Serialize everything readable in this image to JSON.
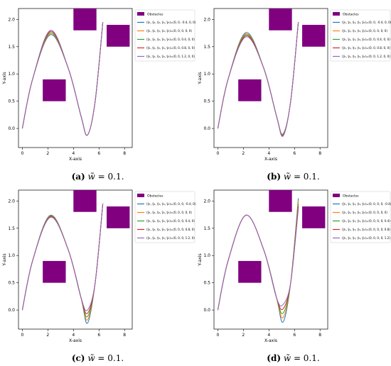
{
  "chart_data": [
    {
      "type": "line",
      "panel": "a",
      "xlabel": "X-axis",
      "ylabel": "Y-axis",
      "xlim": [
        -0.3,
        8.6
      ],
      "ylim": [
        -0.35,
        2.2
      ],
      "x_ticks": [
        0,
        2,
        4,
        6,
        8
      ],
      "y_ticks": [
        0.0,
        0.5,
        1.0,
        1.5,
        2.0
      ],
      "grid": false,
      "legend_position": "top-right",
      "legend_obstacles_label": "Obstacles",
      "obstacle_color": "#800080",
      "obstacles": [
        {
          "x0": 1.6,
          "x1": 3.4,
          "y0": 0.5,
          "y1": 0.9
        },
        {
          "x0": 4.0,
          "x1": 5.8,
          "y0": 1.8,
          "y1": 2.2
        },
        {
          "x0": 6.6,
          "x1": 8.4,
          "y0": 1.5,
          "y1": 1.9
        }
      ],
      "series": [
        {
          "name": "(γ̃₁, γ̃₂, γ̃₃, γ̃₄, γ̃₅)=(0, 0, -0.4, 0, 0)",
          "color": "#1f77b4",
          "peak_x": 2.2,
          "peak_y": 1.72,
          "valley_x": 5.1,
          "valley_y": -0.12,
          "end_x": 6.3,
          "end_y": 1.95
        },
        {
          "name": "(γ̃₁, γ̃₂, γ̃₃, γ̃₄, γ̃₅)=(0, 0, 0, 0, 0)",
          "color": "#ff7f0e",
          "peak_x": 2.2,
          "peak_y": 1.74,
          "valley_x": 5.1,
          "valley_y": -0.12,
          "end_x": 6.3,
          "end_y": 1.95
        },
        {
          "name": "(γ̃₁, γ̃₂, γ̃₃, γ̃₄, γ̃₅)=(0, 0, 0.4, 0, 0)",
          "color": "#2ca02c",
          "peak_x": 2.2,
          "peak_y": 1.76,
          "valley_x": 5.1,
          "valley_y": -0.12,
          "end_x": 6.3,
          "end_y": 1.95
        },
        {
          "name": "(γ̃₁, γ̃₂, γ̃₃, γ̃₄, γ̃₅)=(0, 0, 0.8, 0, 0)",
          "color": "#d62728",
          "peak_x": 2.2,
          "peak_y": 1.78,
          "valley_x": 5.1,
          "valley_y": -0.12,
          "end_x": 6.3,
          "end_y": 1.95
        },
        {
          "name": "(γ̃₁, γ̃₂, γ̃₃, γ̃₄, γ̃₅)=(0, 0, 1.2, 0, 0)",
          "color": "#9467bd",
          "peak_x": 2.2,
          "peak_y": 1.8,
          "valley_x": 5.1,
          "valley_y": -0.12,
          "end_x": 6.3,
          "end_y": 1.95
        }
      ]
    },
    {
      "type": "line",
      "panel": "b",
      "xlabel": "X-axis",
      "ylabel": "Y-axis",
      "xlim": [
        -0.3,
        8.6
      ],
      "ylim": [
        -0.35,
        2.2
      ],
      "x_ticks": [
        0,
        2,
        4,
        6,
        8
      ],
      "y_ticks": [
        0.0,
        0.5,
        1.0,
        1.5,
        2.0
      ],
      "grid": false,
      "legend_position": "top-right",
      "legend_obstacles_label": "Obstacles",
      "obstacle_color": "#800080",
      "obstacles": [
        {
          "x0": 1.6,
          "x1": 3.4,
          "y0": 0.5,
          "y1": 0.9
        },
        {
          "x0": 4.0,
          "x1": 5.8,
          "y0": 1.8,
          "y1": 2.2
        },
        {
          "x0": 6.6,
          "x1": 8.4,
          "y0": 1.5,
          "y1": 1.9
        }
      ],
      "series": [
        {
          "name": "(γ̃₁, γ̃₂, γ̃₃, γ̃₄, γ̃₅)=(0, 0, -0.4, 0, 0)",
          "color": "#1f77b4",
          "peak_x": 2.2,
          "peak_y": 1.76,
          "valley_x": 5.1,
          "valley_y": -0.1,
          "end_x": 6.3,
          "end_y": 1.95
        },
        {
          "name": "(γ̃₁, γ̃₂, γ̃₃, γ̃₄, γ̃₅)=(0, 0, 0, 0, 0)",
          "color": "#ff7f0e",
          "peak_x": 2.2,
          "peak_y": 1.74,
          "valley_x": 5.1,
          "valley_y": -0.11,
          "end_x": 6.3,
          "end_y": 1.95
        },
        {
          "name": "(γ̃₁, γ̃₂, γ̃₃, γ̃₄, γ̃₅)=(0, 0, 0.4, 0, 0)",
          "color": "#2ca02c",
          "peak_x": 2.2,
          "peak_y": 1.72,
          "valley_x": 5.1,
          "valley_y": -0.12,
          "end_x": 6.3,
          "end_y": 1.95
        },
        {
          "name": "(γ̃₁, γ̃₂, γ̃₃, γ̃₄, γ̃₅)=(0, 0, 0.8, 0, 0)",
          "color": "#d62728",
          "peak_x": 2.2,
          "peak_y": 1.7,
          "valley_x": 5.1,
          "valley_y": -0.13,
          "end_x": 6.3,
          "end_y": 1.95
        },
        {
          "name": "(γ̃₁, γ̃₂, γ̃₃, γ̃₄, γ̃₅)=(0, 0, 1.2, 0, 0)",
          "color": "#9467bd",
          "peak_x": 2.2,
          "peak_y": 1.68,
          "valley_x": 5.1,
          "valley_y": -0.14,
          "end_x": 6.3,
          "end_y": 1.95
        }
      ]
    },
    {
      "type": "line",
      "panel": "c",
      "xlabel": "X-axis",
      "ylabel": "Y-axis",
      "xlim": [
        -0.3,
        8.6
      ],
      "ylim": [
        -0.35,
        2.2
      ],
      "x_ticks": [
        0,
        2,
        4,
        6,
        8
      ],
      "y_ticks": [
        0.0,
        0.5,
        1.0,
        1.5,
        2.0
      ],
      "grid": false,
      "legend_position": "top-right",
      "legend_obstacles_label": "Obstacles",
      "obstacle_color": "#800080",
      "obstacles": [
        {
          "x0": 1.6,
          "x1": 3.4,
          "y0": 0.5,
          "y1": 0.9
        },
        {
          "x0": 4.0,
          "x1": 5.8,
          "y0": 1.8,
          "y1": 2.2
        },
        {
          "x0": 6.6,
          "x1": 8.4,
          "y0": 1.5,
          "y1": 1.9
        }
      ],
      "series": [
        {
          "name": "(γ̃₁, γ̃₂, γ̃₃, γ̃₄, γ̃₅)=(0, 0, 0, -0.4, 0)",
          "color": "#1f77b4",
          "peak_x": 2.2,
          "peak_y": 1.74,
          "valley_x": 5.1,
          "valley_y": -0.24,
          "end_x": 6.3,
          "end_y": 1.95
        },
        {
          "name": "(γ̃₁, γ̃₂, γ̃₃, γ̃₄, γ̃₅)=(0, 0, 0, 0, 0)",
          "color": "#ff7f0e",
          "peak_x": 2.2,
          "peak_y": 1.73,
          "valley_x": 5.1,
          "valley_y": -0.18,
          "end_x": 6.3,
          "end_y": 1.95
        },
        {
          "name": "(γ̃₁, γ̃₂, γ̃₃, γ̃₄, γ̃₅)=(0, 0, 0, 0.4, 0)",
          "color": "#2ca02c",
          "peak_x": 2.2,
          "peak_y": 1.72,
          "valley_x": 5.1,
          "valley_y": -0.12,
          "end_x": 6.3,
          "end_y": 1.95
        },
        {
          "name": "(γ̃₁, γ̃₂, γ̃₃, γ̃₄, γ̃₅)=(0, 0, 0, 0.8, 0)",
          "color": "#d62728",
          "peak_x": 2.2,
          "peak_y": 1.71,
          "valley_x": 5.1,
          "valley_y": -0.06,
          "end_x": 6.3,
          "end_y": 1.95
        },
        {
          "name": "(γ̃₁, γ̃₂, γ̃₃, γ̃₄, γ̃₅)=(0, 0, 0, 1.2, 0)",
          "color": "#9467bd",
          "peak_x": 2.2,
          "peak_y": 1.7,
          "valley_x": 5.1,
          "valley_y": 0.0,
          "end_x": 6.3,
          "end_y": 1.95
        }
      ]
    },
    {
      "type": "line",
      "panel": "d",
      "xlabel": "X-axis",
      "ylabel": "Y-axis",
      "xlim": [
        -0.3,
        8.6
      ],
      "ylim": [
        -0.35,
        2.2
      ],
      "x_ticks": [
        0,
        2,
        4,
        6,
        8
      ],
      "y_ticks": [
        0.0,
        0.5,
        1.0,
        1.5,
        2.0
      ],
      "grid": false,
      "legend_position": "top-right",
      "legend_obstacles_label": "Obstacles",
      "obstacle_color": "#800080",
      "obstacles": [
        {
          "x0": 1.6,
          "x1": 3.4,
          "y0": 0.5,
          "y1": 0.9
        },
        {
          "x0": 4.0,
          "x1": 5.8,
          "y0": 1.8,
          "y1": 2.2
        },
        {
          "x0": 6.6,
          "x1": 8.4,
          "y0": 1.5,
          "y1": 1.9
        }
      ],
      "series": [
        {
          "name": "(γ̃₁, γ̃₂, γ̃₃, γ̃₄, γ̃₅)=(0, 0, 0, 0, -0.4)",
          "color": "#1f77b4",
          "peak_x": 2.2,
          "peak_y": 1.74,
          "valley_x": 5.1,
          "valley_y": -0.22,
          "end_x": 6.3,
          "end_y": 2.05
        },
        {
          "name": "(γ̃₁, γ̃₂, γ̃₃, γ̃₄, γ̃₅)=(0, 0, 0, 0, 0)",
          "color": "#ff7f0e",
          "peak_x": 2.2,
          "peak_y": 1.74,
          "valley_x": 5.1,
          "valley_y": -0.14,
          "end_x": 6.3,
          "end_y": 2.0
        },
        {
          "name": "(γ̃₁, γ̃₂, γ̃₃, γ̃₄, γ̃₅)=(0, 0, 0, 0, 0.4)",
          "color": "#2ca02c",
          "peak_x": 2.2,
          "peak_y": 1.74,
          "valley_x": 5.1,
          "valley_y": -0.06,
          "end_x": 6.3,
          "end_y": 1.95
        },
        {
          "name": "(γ̃₁, γ̃₂, γ̃₃, γ̃₄, γ̃₅)=(0, 0, 0, 0, 0.8)",
          "color": "#d62728",
          "peak_x": 2.2,
          "peak_y": 1.74,
          "valley_x": 5.1,
          "valley_y": 0.02,
          "end_x": 6.3,
          "end_y": 1.9
        },
        {
          "name": "(γ̃₁, γ̃₂, γ̃₃, γ̃₄, γ̃₅)=(0, 0, 0, 0, 1.2)",
          "color": "#9467bd",
          "peak_x": 2.2,
          "peak_y": 1.74,
          "valley_x": 5.1,
          "valley_y": 0.1,
          "end_x": 6.3,
          "end_y": 1.85
        }
      ]
    }
  ],
  "captions": [
    {
      "tag": "(a)",
      "sym": "w̃",
      "rest": " = 0.1."
    },
    {
      "tag": "(b)",
      "sym": "w̃",
      "rest": " = 0.1."
    },
    {
      "tag": "(c)",
      "sym": "w̃",
      "rest": " = 0.1."
    },
    {
      "tag": "(d)",
      "sym": "w̃",
      "rest": " = 0.1."
    }
  ]
}
